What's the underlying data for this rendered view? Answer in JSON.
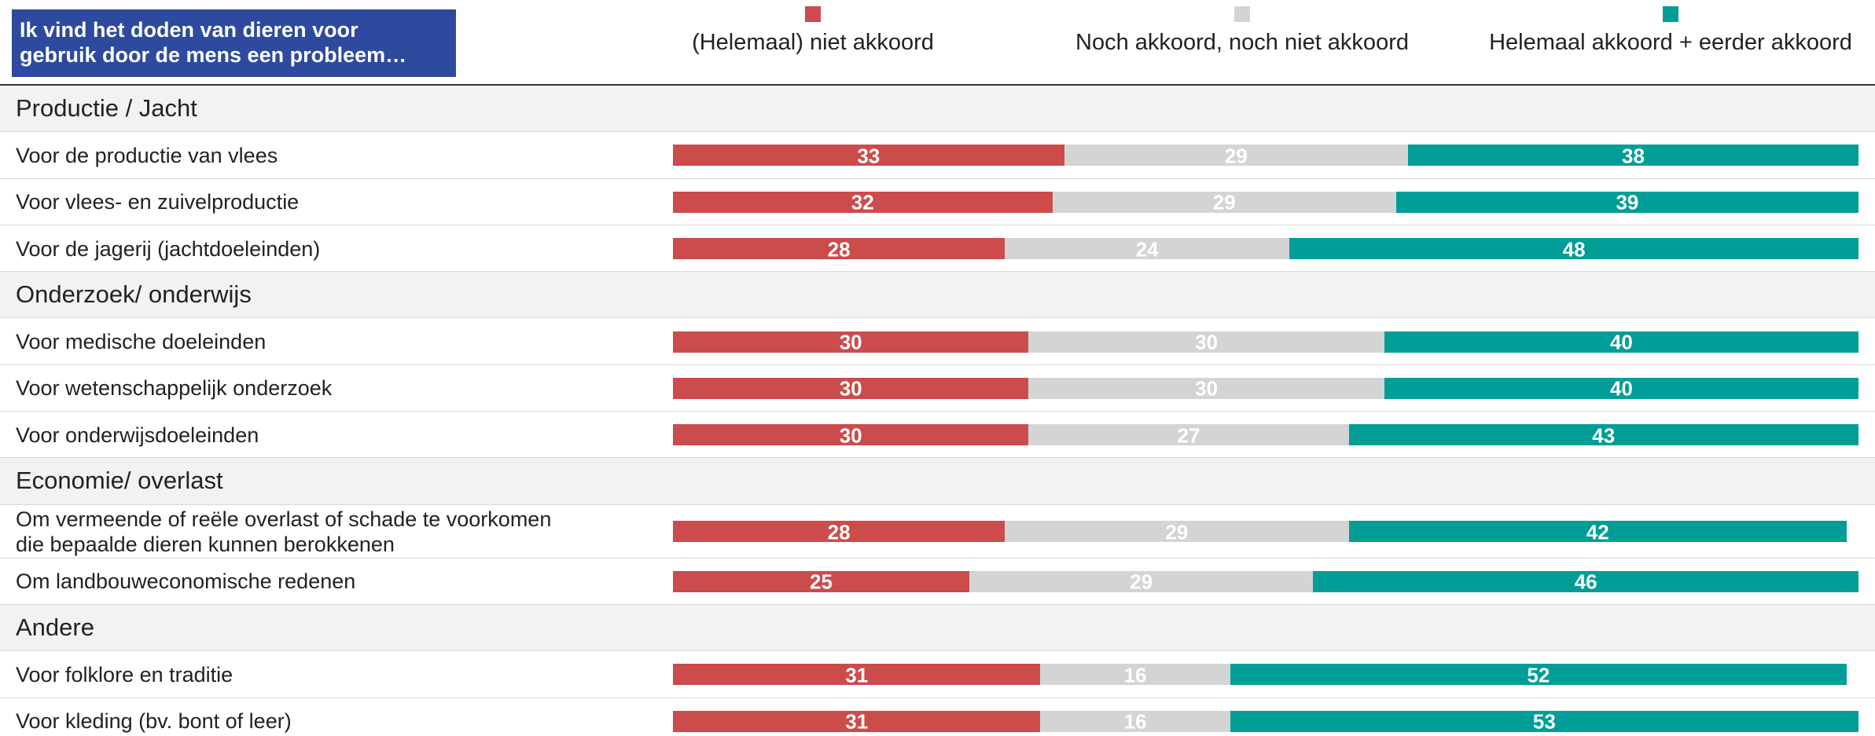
{
  "chart_data": {
    "type": "bar",
    "orientation": "horizontal",
    "stacked": true,
    "title": "Ik vind het doden van dieren voor\ngebruik door de mens een probleem…",
    "xlim": [
      0,
      100
    ],
    "groups": [
      {
        "name": "Productie / Jacht",
        "categories": [
          "Voor de productie van vlees",
          "Voor vlees- en zuivelproductie",
          "Voor de jagerij (jachtdoeleinden)"
        ]
      },
      {
        "name": "Onderzoek/ onderwijs",
        "categories": [
          "Voor medische doeleinden",
          "Voor wetenschappelijk onderzoek",
          "Voor onderwijsdoeleinden"
        ]
      },
      {
        "name": "Economie/ overlast",
        "categories": [
          "Om vermeende of reële overlast of schade te voorkomen\ndie bepaalde dieren kunnen berokkenen",
          "Om landbouweconomische redenen"
        ]
      },
      {
        "name": "Andere",
        "categories": [
          "Voor folklore en traditie",
          "Voor kleding (bv. bont of leer)"
        ]
      }
    ],
    "series": [
      {
        "name": "(Helemaal) niet akkoord",
        "color": "#cc4b4b",
        "values": [
          33,
          32,
          28,
          30,
          30,
          30,
          28,
          25,
          31,
          31
        ]
      },
      {
        "name": "Noch akkoord, noch niet akkoord",
        "color": "#d3d5d5",
        "values": [
          29,
          29,
          24,
          30,
          30,
          27,
          29,
          29,
          16,
          16
        ]
      },
      {
        "name": "Helemaal akkoord + eerder akkoord",
        "color": "#009e96",
        "values": [
          38,
          39,
          48,
          40,
          40,
          43,
          42,
          46,
          52,
          53
        ]
      }
    ]
  }
}
